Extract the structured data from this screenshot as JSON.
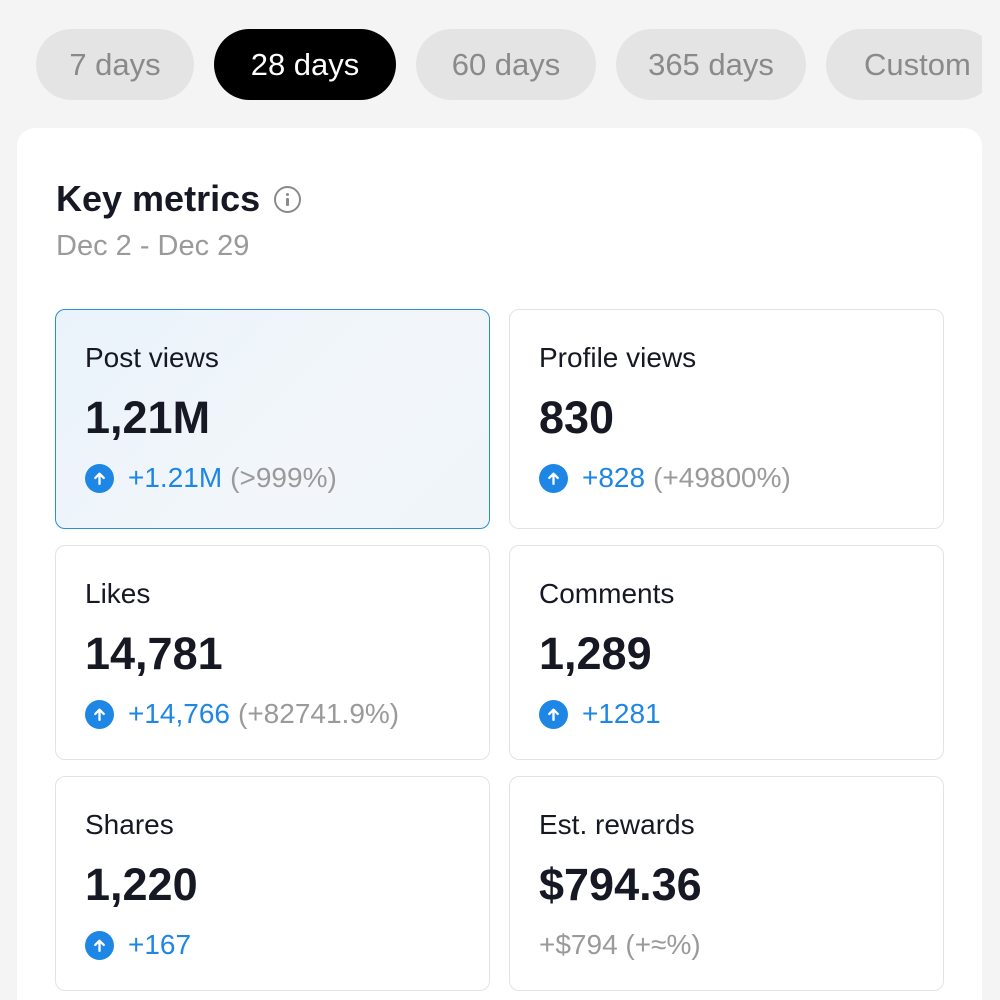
{
  "tabs": [
    {
      "label": "7 days",
      "active": false
    },
    {
      "label": "28 days",
      "active": true
    },
    {
      "label": "60 days",
      "active": false
    },
    {
      "label": "365 days",
      "active": false
    },
    {
      "label": "Custom",
      "active": false
    }
  ],
  "header": {
    "title": "Key metrics",
    "date_range": "Dec 2 - Dec 29"
  },
  "metrics": [
    {
      "label": "Post views",
      "value": "1,21M",
      "delta": "+1.21M",
      "pct": "(>999%)"
    },
    {
      "label": "Profile views",
      "value": "830",
      "delta": "+828",
      "pct": "(+49800%)"
    },
    {
      "label": "Likes",
      "value": "14,781",
      "delta": "+14,766",
      "pct": "(+82741.9%)"
    },
    {
      "label": "Comments",
      "value": "1,289",
      "delta": "+1281",
      "pct": ""
    },
    {
      "label": "Shares",
      "value": "1,220",
      "delta": "+167",
      "pct": ""
    },
    {
      "label": "Est. rewards",
      "value": "$794.36",
      "delta": "+$794 (+≈%)",
      "pct": ""
    }
  ],
  "colors": {
    "accent": "#1e86e5",
    "selected_border": "#2b8fd6",
    "active_tab": "#000000"
  }
}
